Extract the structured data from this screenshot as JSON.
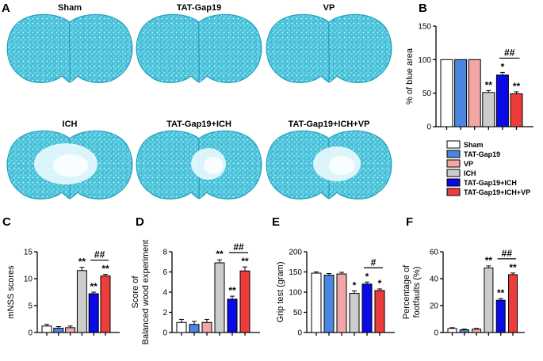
{
  "panel_labels": [
    "A",
    "B",
    "C",
    "D",
    "E",
    "F"
  ],
  "brain_images": [
    {
      "label": "Sham",
      "lesion": false
    },
    {
      "label": "TAT-Gap19",
      "lesion": false
    },
    {
      "label": "VP",
      "lesion": false
    },
    {
      "label": "ICH",
      "lesion": true
    },
    {
      "label": "TAT-Gap19+ICH",
      "lesion": true
    },
    {
      "label": "TAT-Gap19+ICH+VP",
      "lesion": true
    }
  ],
  "colors": {
    "brain_tissue": "#2fb6cf",
    "bar_colors": [
      "#ffffff",
      "#4a86e0",
      "#f2a6a6",
      "#cccccc",
      "#0a0ae6",
      "#ee3b3b"
    ]
  },
  "legend": [
    "Sham",
    "TAT-Gap19",
    "VP",
    "ICH",
    "TAT-Gap19+ICH",
    "TAT-Gap19+ICH+VP"
  ],
  "chart_data": [
    {
      "id": "B",
      "type": "bar",
      "categories": [
        "Sham",
        "TAT-Gap19",
        "VP",
        "ICH",
        "TAT-Gap19+ICH",
        "TAT-Gap19+ICH+VP"
      ],
      "values": [
        100,
        100,
        100,
        51,
        77,
        49
      ],
      "errors": [
        0,
        0,
        0,
        3,
        4,
        3
      ],
      "ylabel": "% of blue area",
      "ylim": [
        0,
        150
      ],
      "yticks": [
        0,
        50,
        100,
        150
      ],
      "stars": [
        "",
        "",
        "",
        "**",
        "*",
        "**"
      ],
      "bracket": {
        "from": 4,
        "to": 5,
        "label": "##"
      }
    },
    {
      "id": "C",
      "type": "bar",
      "categories": [
        "Sham",
        "TAT-Gap19",
        "VP",
        "ICH",
        "TAT-Gap19+ICH",
        "TAT-Gap19+ICH+VP"
      ],
      "values": [
        1.2,
        0.8,
        0.9,
        11.5,
        7.2,
        10.5
      ],
      "errors": [
        0.3,
        0.3,
        0.3,
        0.6,
        0.3,
        0.3
      ],
      "ylabel": "mNSS scores",
      "ylim": [
        0,
        15
      ],
      "yticks": [
        0,
        5,
        10,
        15
      ],
      "stars": [
        "",
        "",
        "",
        "**",
        "**",
        "**"
      ],
      "bracket": {
        "from": 4,
        "to": 5,
        "label": "##"
      }
    },
    {
      "id": "D",
      "type": "bar",
      "categories": [
        "Sham",
        "TAT-Gap19",
        "VP",
        "ICH",
        "TAT-Gap19+ICH",
        "TAT-Gap19+ICH+VP"
      ],
      "values": [
        1.0,
        0.8,
        1.0,
        6.9,
        3.3,
        6.1
      ],
      "errors": [
        0.3,
        0.3,
        0.3,
        0.3,
        0.3,
        0.4
      ],
      "ylabel": "Score of\nBalanced wood experiment",
      "ylim": [
        0,
        8
      ],
      "yticks": [
        0,
        2,
        4,
        6,
        8
      ],
      "stars": [
        "",
        "",
        "",
        "**",
        "**",
        "**"
      ],
      "bracket": {
        "from": 4,
        "to": 5,
        "label": "##"
      }
    },
    {
      "id": "E",
      "type": "bar",
      "categories": [
        "Sham",
        "TAT-Gap19",
        "VP",
        "ICH",
        "TAT-Gap19+ICH",
        "TAT-Gap19+ICH+VP"
      ],
      "values": [
        147,
        142,
        145,
        97,
        120,
        104
      ],
      "errors": [
        3,
        4,
        4,
        6,
        5,
        4
      ],
      "ylabel": "Grip test (gram)",
      "ylim": [
        0,
        200
      ],
      "yticks": [
        0,
        50,
        100,
        150,
        200
      ],
      "stars": [
        "",
        "",
        "",
        "*",
        "*",
        "*"
      ],
      "bracket": {
        "from": 4,
        "to": 5,
        "label": "#"
      }
    },
    {
      "id": "F",
      "type": "bar",
      "categories": [
        "Sham",
        "TAT-Gap19",
        "VP",
        "ICH",
        "TAT-Gap19+ICH",
        "TAT-Gap19+ICH+VP"
      ],
      "values": [
        3,
        2,
        2.5,
        48,
        24,
        43
      ],
      "errors": [
        0.6,
        0.5,
        0.5,
        1.5,
        1.2,
        1.2
      ],
      "ylabel": "Percentage of\nfootfaults (%)",
      "ylim": [
        0,
        60
      ],
      "yticks": [
        0,
        20,
        40,
        60
      ],
      "stars": [
        "",
        "",
        "",
        "**",
        "**",
        "**"
      ],
      "bracket": {
        "from": 4,
        "to": 5,
        "label": "##"
      }
    }
  ]
}
